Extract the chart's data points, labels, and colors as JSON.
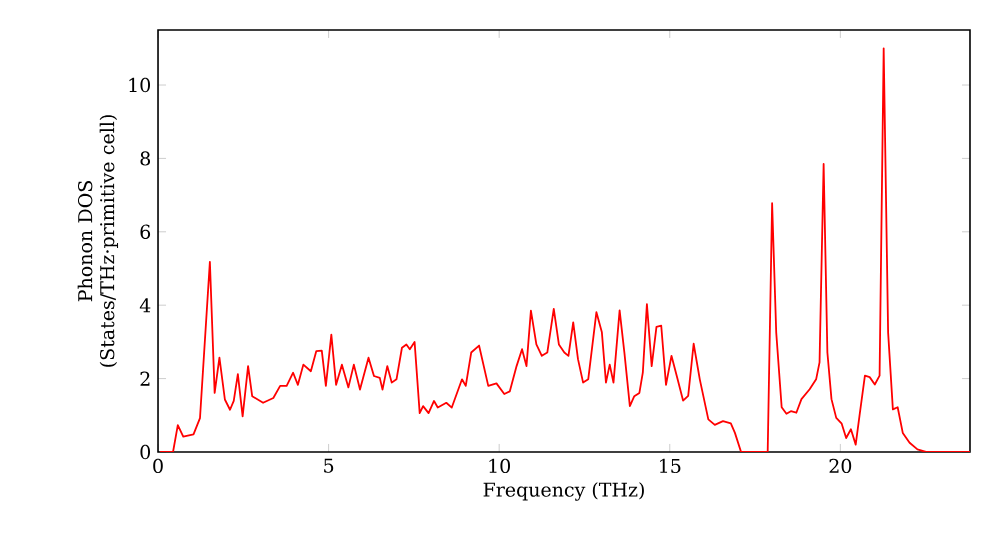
{
  "chart_data": {
    "type": "line",
    "xlabel": "Frequency (THz)",
    "ylabel": "Phonon DOS (States/THz·primitive cell)",
    "xlim": [
      0,
      23.8
    ],
    "ylim": [
      0,
      11.5
    ],
    "xticks": [
      0,
      5,
      10,
      15,
      20
    ],
    "yticks": [
      0,
      2,
      4,
      6,
      8,
      10
    ],
    "grid": false,
    "marker": "none",
    "line_style": "solid",
    "x": [
      0.06,
      0.44,
      0.58,
      0.74,
      1.04,
      1.23,
      1.52,
      1.66,
      1.8,
      1.96,
      2.11,
      2.22,
      2.34,
      2.48,
      2.64,
      2.76,
      3.08,
      3.38,
      3.58,
      3.77,
      3.96,
      4.1,
      4.26,
      4.48,
      4.64,
      4.8,
      4.92,
      5.08,
      5.22,
      5.39,
      5.58,
      5.74,
      5.92,
      6.17,
      6.33,
      6.5,
      6.58,
      6.72,
      6.85,
      6.99,
      7.15,
      7.28,
      7.38,
      7.52,
      7.67,
      7.77,
      7.93,
      8.09,
      8.2,
      8.45,
      8.61,
      8.91,
      9.02,
      9.18,
      9.41,
      9.68,
      9.92,
      10.15,
      10.31,
      10.51,
      10.67,
      10.8,
      10.93,
      11.09,
      11.25,
      11.41,
      11.6,
      11.75,
      11.91,
      12.03,
      12.17,
      12.31,
      12.46,
      12.61,
      12.85,
      13.01,
      13.13,
      13.24,
      13.35,
      13.53,
      13.67,
      13.83,
      13.96,
      14.11,
      14.21,
      14.33,
      14.47,
      14.61,
      14.75,
      14.89,
      15.05,
      15.23,
      15.39,
      15.54,
      15.7,
      15.88,
      16.13,
      16.32,
      16.56,
      16.79,
      16.91,
      17.09,
      17.87,
      18.0,
      18.12,
      18.28,
      18.42,
      18.55,
      18.71,
      18.86,
      19.1,
      19.29,
      19.39,
      19.51,
      19.62,
      19.74,
      19.88,
      20.04,
      20.17,
      20.31,
      20.45,
      20.56,
      20.72,
      20.86,
      21.01,
      21.15,
      21.27,
      21.4,
      21.54,
      21.68,
      21.83,
      22.03,
      22.26,
      22.51,
      23.8
    ],
    "series": [
      {
        "color": "#ff0000",
        "values": [
          0,
          0,
          0.73,
          0.42,
          0.48,
          0.92,
          5.18,
          1.61,
          2.57,
          1.43,
          1.15,
          1.39,
          2.12,
          0.97,
          2.34,
          1.52,
          1.34,
          1.47,
          1.8,
          1.8,
          2.16,
          1.83,
          2.38,
          2.2,
          2.75,
          2.76,
          1.8,
          3.2,
          1.83,
          2.38,
          1.76,
          2.38,
          1.7,
          2.57,
          2.07,
          2.02,
          1.7,
          2.34,
          1.89,
          1.98,
          2.84,
          2.93,
          2.8,
          3.0,
          1.06,
          1.25,
          1.06,
          1.39,
          1.21,
          1.34,
          1.21,
          1.98,
          1.8,
          2.71,
          2.9,
          1.8,
          1.87,
          1.58,
          1.65,
          2.34,
          2.8,
          2.34,
          3.85,
          2.93,
          2.62,
          2.71,
          3.9,
          2.93,
          2.71,
          2.62,
          3.53,
          2.53,
          1.89,
          1.98,
          3.81,
          3.26,
          1.89,
          2.38,
          1.89,
          3.86,
          2.71,
          1.25,
          1.52,
          1.61,
          2.16,
          4.03,
          2.34,
          3.41,
          3.44,
          1.83,
          2.62,
          1.98,
          1.4,
          1.53,
          2.95,
          1.98,
          0.89,
          0.74,
          0.84,
          0.78,
          0.52,
          0,
          0,
          6.78,
          3.26,
          1.22,
          1.04,
          1.11,
          1.07,
          1.44,
          1.71,
          1.98,
          2.44,
          7.85,
          2.71,
          1.44,
          0.93,
          0.77,
          0.38,
          0.62,
          0.2,
          0.98,
          2.08,
          2.04,
          1.84,
          2.08,
          11.0,
          3.26,
          1.16,
          1.22,
          0.52,
          0.25,
          0.07,
          0,
          0
        ]
      }
    ]
  }
}
